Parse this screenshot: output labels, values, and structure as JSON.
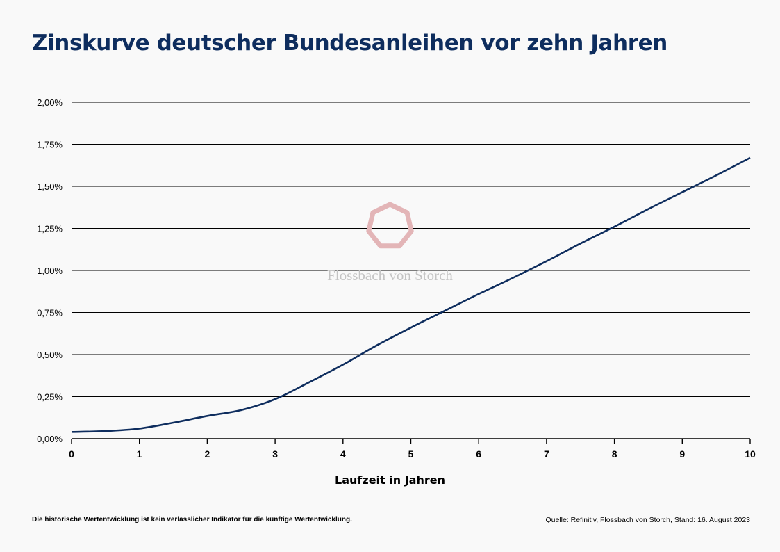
{
  "title": "Zinskurve deutscher Bundesanleihen vor zehn Jahren",
  "footnote": "Die historische Wertentwicklung ist kein verlässlicher Indikator für die künftige Wertentwicklung.",
  "source": "Quelle: Refinitiv, Flossbach von Storch, Stand: 16. August 2023",
  "watermark": {
    "text": "Flossbach von Storch",
    "logo_icon": "heptagon-logo-icon",
    "color": "#e3b5b7"
  },
  "colors": {
    "line": "#0e2d5e",
    "title": "#0e2d5e"
  },
  "chart_data": {
    "type": "line",
    "xlabel": "Laufzeit in Jahren",
    "ylabel": "",
    "xlim": [
      0,
      10
    ],
    "ylim": [
      0,
      2.0
    ],
    "x_ticks": [
      "0",
      "1",
      "2",
      "3",
      "4",
      "5",
      "6",
      "7",
      "8",
      "9",
      "10"
    ],
    "y_ticks": [
      "0,00%",
      "0,25%",
      "0,50%",
      "0,75%",
      "1,00%",
      "1,25%",
      "1,50%",
      "1,75%",
      "2,00%"
    ],
    "grid": "horizontal",
    "series": [
      {
        "x": [
          0,
          0.5,
          1,
          1.5,
          2,
          2.5,
          3,
          3.5,
          4,
          4.5,
          5,
          5.5,
          6,
          6.5,
          7,
          7.5,
          8,
          8.5,
          9,
          9.5,
          10
        ],
        "values": [
          0.04,
          0.045,
          0.06,
          0.095,
          0.135,
          0.17,
          0.235,
          0.335,
          0.44,
          0.555,
          0.66,
          0.76,
          0.86,
          0.955,
          1.055,
          1.16,
          1.26,
          1.365,
          1.465,
          1.565,
          1.67
        ]
      }
    ]
  }
}
